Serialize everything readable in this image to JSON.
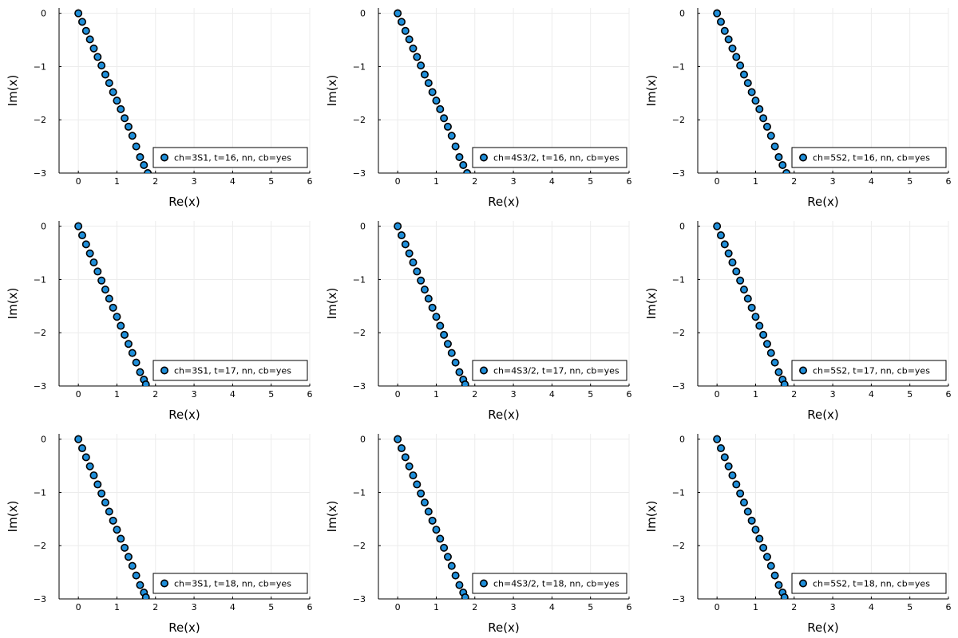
{
  "chart_data": [
    {
      "type": "scatter",
      "xlabel": "Re(x)",
      "ylabel": "Im(x)",
      "xlim": [
        -0.5,
        6
      ],
      "ylim": [
        -3,
        0.1
      ],
      "xticks": [
        "0",
        "1",
        "2",
        "3",
        "4",
        "5",
        "6"
      ],
      "yticks": [
        "0",
        "−1",
        "−2",
        "−3"
      ],
      "legend": "ch=3S1, t=16, nn,  cb=yes",
      "legend_position": "bottom-right",
      "grid": true,
      "series": [
        {
          "name": "ch=3S1, t=16, nn,  cb=yes",
          "x": [
            0,
            0.1,
            0.2,
            0.3,
            0.4,
            0.5,
            0.6,
            0.7,
            0.8,
            0.9,
            1.0,
            1.1,
            1.2,
            1.3,
            1.4,
            1.5,
            1.6,
            1.7,
            1.8
          ],
          "y": [
            0,
            -0.16,
            -0.33,
            -0.49,
            -0.66,
            -0.82,
            -0.98,
            -1.15,
            -1.31,
            -1.48,
            -1.64,
            -1.8,
            -1.97,
            -2.13,
            -2.3,
            -2.5,
            -2.7,
            -2.85,
            -3.0
          ]
        }
      ]
    },
    {
      "type": "scatter",
      "xlabel": "Re(x)",
      "ylabel": "Im(x)",
      "xlim": [
        -0.5,
        6
      ],
      "ylim": [
        -3,
        0.1
      ],
      "xticks": [
        "0",
        "1",
        "2",
        "3",
        "4",
        "5",
        "6"
      ],
      "yticks": [
        "0",
        "−1",
        "−2",
        "−3"
      ],
      "legend": "ch=4S3/2, t=16, nn,  cb=yes",
      "legend_position": "bottom-right",
      "grid": true,
      "series": [
        {
          "name": "ch=4S3/2, t=16, nn,  cb=yes",
          "x": [
            0,
            0.1,
            0.2,
            0.3,
            0.4,
            0.5,
            0.6,
            0.7,
            0.8,
            0.9,
            1.0,
            1.1,
            1.2,
            1.3,
            1.4,
            1.5,
            1.6,
            1.7,
            1.8
          ],
          "y": [
            0,
            -0.16,
            -0.33,
            -0.49,
            -0.66,
            -0.82,
            -0.98,
            -1.15,
            -1.31,
            -1.48,
            -1.64,
            -1.8,
            -1.97,
            -2.13,
            -2.3,
            -2.5,
            -2.7,
            -2.85,
            -3.0
          ]
        }
      ]
    },
    {
      "type": "scatter",
      "xlabel": "Re(x)",
      "ylabel": "Im(x)",
      "xlim": [
        -0.5,
        6
      ],
      "ylim": [
        -3,
        0.1
      ],
      "xticks": [
        "0",
        "1",
        "2",
        "3",
        "4",
        "5",
        "6"
      ],
      "yticks": [
        "0",
        "−1",
        "−2",
        "−3"
      ],
      "legend": "ch=5S2, t=16, nn,  cb=yes",
      "legend_position": "bottom-right",
      "grid": true,
      "series": [
        {
          "name": "ch=5S2, t=16, nn,  cb=yes",
          "x": [
            0,
            0.1,
            0.2,
            0.3,
            0.4,
            0.5,
            0.6,
            0.7,
            0.8,
            0.9,
            1.0,
            1.1,
            1.2,
            1.3,
            1.4,
            1.5,
            1.6,
            1.7,
            1.8
          ],
          "y": [
            0,
            -0.16,
            -0.33,
            -0.49,
            -0.66,
            -0.82,
            -0.98,
            -1.15,
            -1.31,
            -1.48,
            -1.64,
            -1.8,
            -1.97,
            -2.13,
            -2.3,
            -2.5,
            -2.7,
            -2.85,
            -3.0
          ]
        }
      ]
    },
    {
      "type": "scatter",
      "xlabel": "Re(x)",
      "ylabel": "Im(x)",
      "xlim": [
        -0.5,
        6
      ],
      "ylim": [
        -3,
        0.1
      ],
      "xticks": [
        "0",
        "1",
        "2",
        "3",
        "4",
        "5",
        "6"
      ],
      "yticks": [
        "0",
        "−1",
        "−2",
        "−3"
      ],
      "legend": "ch=3S1, t=17, nn,  cb=yes",
      "legend_position": "bottom-right",
      "grid": true,
      "series": [
        {
          "name": "ch=3S1, t=17, nn,  cb=yes",
          "x": [
            0,
            0.1,
            0.2,
            0.3,
            0.4,
            0.5,
            0.6,
            0.7,
            0.8,
            0.9,
            1.0,
            1.1,
            1.2,
            1.3,
            1.4,
            1.5,
            1.6,
            1.7,
            1.75
          ],
          "y": [
            0,
            -0.17,
            -0.34,
            -0.51,
            -0.68,
            -0.85,
            -1.02,
            -1.19,
            -1.36,
            -1.53,
            -1.7,
            -1.87,
            -2.04,
            -2.21,
            -2.38,
            -2.56,
            -2.74,
            -2.88,
            -2.97
          ]
        }
      ]
    },
    {
      "type": "scatter",
      "xlabel": "Re(x)",
      "ylabel": "Im(x)",
      "xlim": [
        -0.5,
        6
      ],
      "ylim": [
        -3,
        0.1
      ],
      "xticks": [
        "0",
        "1",
        "2",
        "3",
        "4",
        "5",
        "6"
      ],
      "yticks": [
        "0",
        "−1",
        "−2",
        "−3"
      ],
      "legend": "ch=4S3/2, t=17, nn,  cb=yes",
      "legend_position": "bottom-right",
      "grid": true,
      "series": [
        {
          "name": "ch=4S3/2, t=17, nn,  cb=yes",
          "x": [
            0,
            0.1,
            0.2,
            0.3,
            0.4,
            0.5,
            0.6,
            0.7,
            0.8,
            0.9,
            1.0,
            1.1,
            1.2,
            1.3,
            1.4,
            1.5,
            1.6,
            1.7,
            1.75
          ],
          "y": [
            0,
            -0.17,
            -0.34,
            -0.51,
            -0.68,
            -0.85,
            -1.02,
            -1.19,
            -1.36,
            -1.53,
            -1.7,
            -1.87,
            -2.04,
            -2.21,
            -2.38,
            -2.56,
            -2.74,
            -2.88,
            -2.97
          ]
        }
      ]
    },
    {
      "type": "scatter",
      "xlabel": "Re(x)",
      "ylabel": "Im(x)",
      "xlim": [
        -0.5,
        6
      ],
      "ylim": [
        -3,
        0.1
      ],
      "xticks": [
        "0",
        "1",
        "2",
        "3",
        "4",
        "5",
        "6"
      ],
      "yticks": [
        "0",
        "−1",
        "−2",
        "−3"
      ],
      "legend": "ch=5S2, t=17, nn,  cb=yes",
      "legend_position": "bottom-right",
      "grid": true,
      "series": [
        {
          "name": "ch=5S2, t=17, nn,  cb=yes",
          "x": [
            0,
            0.1,
            0.2,
            0.3,
            0.4,
            0.5,
            0.6,
            0.7,
            0.8,
            0.9,
            1.0,
            1.1,
            1.2,
            1.3,
            1.4,
            1.5,
            1.6,
            1.7,
            1.75
          ],
          "y": [
            0,
            -0.17,
            -0.34,
            -0.51,
            -0.68,
            -0.85,
            -1.02,
            -1.19,
            -1.36,
            -1.53,
            -1.7,
            -1.87,
            -2.04,
            -2.21,
            -2.38,
            -2.56,
            -2.74,
            -2.88,
            -2.97
          ]
        }
      ]
    },
    {
      "type": "scatter",
      "xlabel": "Re(x)",
      "ylabel": "Im(x)",
      "xlim": [
        -0.5,
        6
      ],
      "ylim": [
        -3,
        0.1
      ],
      "xticks": [
        "0",
        "1",
        "2",
        "3",
        "4",
        "5",
        "6"
      ],
      "yticks": [
        "0",
        "−1",
        "−2",
        "−3"
      ],
      "legend": "ch=3S1, t=18, nn,  cb=yes",
      "legend_position": "bottom-right",
      "grid": true,
      "series": [
        {
          "name": "ch=3S1, t=18, nn,  cb=yes",
          "x": [
            0,
            0.1,
            0.2,
            0.3,
            0.4,
            0.5,
            0.6,
            0.7,
            0.8,
            0.9,
            1.0,
            1.1,
            1.2,
            1.3,
            1.4,
            1.5,
            1.6,
            1.7,
            1.75
          ],
          "y": [
            0,
            -0.17,
            -0.34,
            -0.51,
            -0.68,
            -0.85,
            -1.02,
            -1.19,
            -1.36,
            -1.53,
            -1.7,
            -1.87,
            -2.04,
            -2.21,
            -2.38,
            -2.56,
            -2.74,
            -2.88,
            -2.97
          ]
        }
      ]
    },
    {
      "type": "scatter",
      "xlabel": "Re(x)",
      "ylabel": "Im(x)",
      "xlim": [
        -0.5,
        6
      ],
      "ylim": [
        -3,
        0.1
      ],
      "xticks": [
        "0",
        "1",
        "2",
        "3",
        "4",
        "5",
        "6"
      ],
      "yticks": [
        "0",
        "−1",
        "−2",
        "−3"
      ],
      "legend": "ch=4S3/2, t=18, nn,  cb=yes",
      "legend_position": "bottom-right",
      "grid": true,
      "series": [
        {
          "name": "ch=4S3/2, t=18, nn,  cb=yes",
          "x": [
            0,
            0.1,
            0.2,
            0.3,
            0.4,
            0.5,
            0.6,
            0.7,
            0.8,
            0.9,
            1.0,
            1.1,
            1.2,
            1.3,
            1.4,
            1.5,
            1.6,
            1.7,
            1.75
          ],
          "y": [
            0,
            -0.17,
            -0.34,
            -0.51,
            -0.68,
            -0.85,
            -1.02,
            -1.19,
            -1.36,
            -1.53,
            -1.7,
            -1.87,
            -2.04,
            -2.21,
            -2.38,
            -2.56,
            -2.74,
            -2.88,
            -2.97
          ]
        }
      ]
    },
    {
      "type": "scatter",
      "xlabel": "Re(x)",
      "ylabel": "Im(x)",
      "xlim": [
        -0.5,
        6
      ],
      "ylim": [
        -3,
        0.1
      ],
      "xticks": [
        "0",
        "1",
        "2",
        "3",
        "4",
        "5",
        "6"
      ],
      "yticks": [
        "0",
        "−1",
        "−2",
        "−3"
      ],
      "legend": "ch=5S2, t=18, nn,  cb=yes",
      "legend_position": "bottom-right",
      "grid": true,
      "series": [
        {
          "name": "ch=5S2, t=18, nn,  cb=yes",
          "x": [
            0,
            0.1,
            0.2,
            0.3,
            0.4,
            0.5,
            0.6,
            0.7,
            0.8,
            0.9,
            1.0,
            1.1,
            1.2,
            1.3,
            1.4,
            1.5,
            1.6,
            1.7,
            1.75
          ],
          "y": [
            0,
            -0.17,
            -0.34,
            -0.51,
            -0.68,
            -0.85,
            -1.02,
            -1.19,
            -1.36,
            -1.53,
            -1.7,
            -1.87,
            -2.04,
            -2.21,
            -2.38,
            -2.56,
            -2.74,
            -2.88,
            -2.97
          ]
        }
      ]
    }
  ],
  "style": {
    "marker_color": "#1f8fda",
    "marker_edge": "#000000",
    "grid_color": "#ececec"
  }
}
